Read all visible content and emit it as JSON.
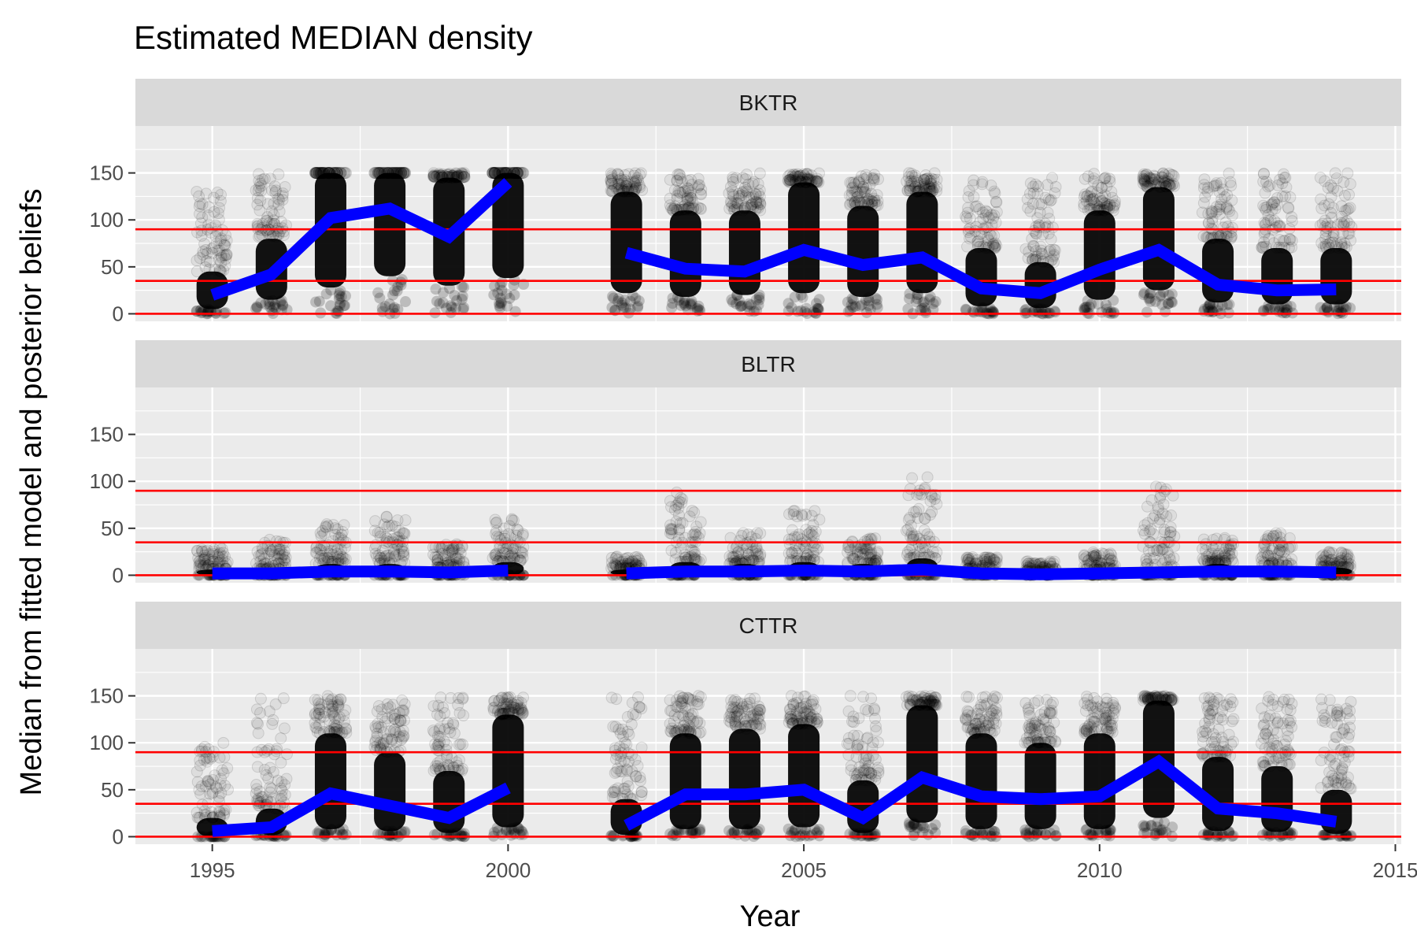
{
  "chart_data": {
    "type": "scatter",
    "title": "Estimated MEDIAN density",
    "xlabel": "Year",
    "ylabel": "Median from fitted model and posterior beliefs",
    "xlim": [
      1993.7,
      2015.1
    ],
    "ylim": [
      -8,
      200
    ],
    "x_ticks": [
      1995,
      2000,
      2005,
      2010,
      2015
    ],
    "x_tick_labels": [
      "1995",
      "2000",
      "2005",
      "2010",
      "2015"
    ],
    "y_ticks": [
      0,
      50,
      100,
      150
    ],
    "y_tick_labels": [
      "0",
      "50",
      "100",
      "150"
    ],
    "reference_lines": [
      0,
      35,
      90
    ],
    "colors": {
      "median_line": "#0000ff",
      "reference_line": "#ff0000",
      "points": "#000000",
      "panel_background": "#ebebeb",
      "strip_background": "#d9d9d9"
    },
    "grid": true,
    "panels": [
      {
        "label": "BKTR",
        "median": {
          "years": [
            1995,
            1996,
            1997,
            1998,
            1999,
            2000,
            2002,
            2003,
            2004,
            2005,
            2006,
            2007,
            2008,
            2009,
            2010,
            2011,
            2012,
            2013,
            2014
          ],
          "values": [
            20,
            42,
            102,
            112,
            82,
            140,
            65,
            48,
            45,
            68,
            52,
            60,
            27,
            22,
            47,
            68,
            31,
            25,
            26
          ]
        },
        "point_clouds": {
          "years": [
            1995,
            1996,
            1997,
            1998,
            1999,
            2000,
            2002,
            2003,
            2004,
            2005,
            2006,
            2007,
            2008,
            2009,
            2010,
            2011,
            2012,
            2013,
            2014
          ],
          "low": [
            5,
            15,
            28,
            40,
            30,
            38,
            22,
            18,
            20,
            22,
            18,
            22,
            8,
            6,
            15,
            25,
            12,
            10,
            10
          ],
          "high": [
            45,
            80,
            150,
            150,
            145,
            150,
            130,
            110,
            110,
            140,
            115,
            130,
            70,
            55,
            110,
            135,
            80,
            70,
            70
          ],
          "max": [
            130,
            150,
            150,
            150,
            150,
            150,
            150,
            150,
            150,
            150,
            150,
            150,
            145,
            145,
            150,
            150,
            150,
            150,
            150
          ]
        }
      },
      {
        "label": "BLTR",
        "median": {
          "years": [
            1995,
            1996,
            1997,
            1998,
            1999,
            2000,
            2002,
            2003,
            2004,
            2005,
            2006,
            2007,
            2008,
            2009,
            2010,
            2011,
            2012,
            2013,
            2014
          ],
          "values": [
            2,
            2,
            4,
            4,
            3,
            5,
            2,
            4,
            4,
            5,
            4,
            6,
            2,
            1,
            2,
            3,
            4,
            4,
            3
          ]
        },
        "point_clouds": {
          "years": [
            1995,
            1996,
            1997,
            1998,
            1999,
            2000,
            2002,
            2003,
            2004,
            2005,
            2006,
            2007,
            2008,
            2009,
            2010,
            2011,
            2012,
            2013,
            2014
          ],
          "low": [
            0,
            0,
            0,
            0,
            0,
            0,
            0,
            0,
            0,
            0,
            0,
            0,
            0,
            0,
            0,
            0,
            0,
            0,
            0
          ],
          "high": [
            6,
            6,
            12,
            12,
            8,
            14,
            6,
            14,
            12,
            14,
            12,
            18,
            6,
            4,
            6,
            8,
            12,
            10,
            8
          ],
          "max": [
            30,
            40,
            55,
            65,
            35,
            60,
            20,
            90,
            45,
            70,
            40,
            105,
            20,
            15,
            25,
            95,
            40,
            45,
            25
          ]
        }
      },
      {
        "label": "CTTR",
        "median": {
          "years": [
            1995,
            1996,
            1997,
            1998,
            1999,
            2000,
            2002,
            2003,
            2004,
            2005,
            2006,
            2007,
            2008,
            2009,
            2010,
            2011,
            2012,
            2013,
            2014
          ],
          "values": [
            6,
            10,
            46,
            33,
            20,
            52,
            12,
            45,
            45,
            50,
            20,
            63,
            43,
            40,
            43,
            80,
            30,
            25,
            16
          ]
        },
        "point_clouds": {
          "years": [
            1995,
            1996,
            1997,
            1998,
            1999,
            2000,
            2002,
            2003,
            2004,
            2005,
            2006,
            2007,
            2008,
            2009,
            2010,
            2011,
            2012,
            2013,
            2014
          ],
          "low": [
            0,
            2,
            8,
            6,
            4,
            10,
            2,
            8,
            8,
            10,
            4,
            15,
            8,
            8,
            8,
            20,
            6,
            5,
            3
          ],
          "high": [
            20,
            30,
            110,
            90,
            70,
            130,
            40,
            110,
            115,
            120,
            60,
            140,
            110,
            100,
            110,
            145,
            85,
            75,
            50
          ],
          "max": [
            100,
            150,
            150,
            150,
            150,
            150,
            150,
            150,
            150,
            150,
            150,
            150,
            150,
            150,
            150,
            150,
            150,
            150,
            150
          ]
        }
      }
    ]
  }
}
